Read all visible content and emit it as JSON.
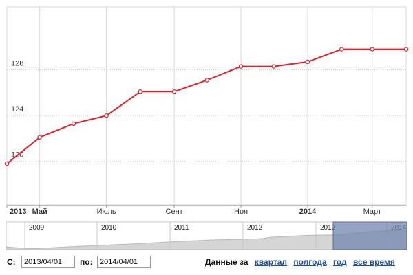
{
  "chart_data": {
    "type": "line",
    "title": "",
    "xlabel": "",
    "ylabel": "",
    "ylim": [
      116.2,
      133.5
    ],
    "y_ticks": [
      120,
      124,
      128
    ],
    "x_tick_labels": [
      {
        "label": "2013",
        "bold": true,
        "date": "2013-04-01"
      },
      {
        "label": "Май",
        "bold": true,
        "date": "2013-05-01"
      },
      {
        "label": "Июль",
        "bold": false,
        "date": "2013-07-01"
      },
      {
        "label": "Сент",
        "bold": false,
        "date": "2013-09-01"
      },
      {
        "label": "Ноя",
        "bold": false,
        "date": "2013-11-01"
      },
      {
        "label": "2014",
        "bold": true,
        "date": "2014-01-01"
      },
      {
        "label": "Март",
        "bold": false,
        "date": "2014-03-01"
      }
    ],
    "series": [
      {
        "color": "#e0202a",
        "points": [
          {
            "x": "2013-04-01",
            "y": 119.8
          },
          {
            "x": "2013-05-01",
            "y": 122.1
          },
          {
            "x": "2013-06-01",
            "y": 123.3
          },
          {
            "x": "2013-07-01",
            "y": 124.0
          },
          {
            "x": "2013-08-01",
            "y": 126.1
          },
          {
            "x": "2013-09-01",
            "y": 126.1
          },
          {
            "x": "2013-10-01",
            "y": 127.1
          },
          {
            "x": "2013-11-01",
            "y": 128.3
          },
          {
            "x": "2013-12-01",
            "y": 128.3
          },
          {
            "x": "2014-01-01",
            "y": 128.7
          },
          {
            "x": "2014-02-01",
            "y": 129.8
          },
          {
            "x": "2014-03-01",
            "y": 129.8
          },
          {
            "x": "2014-04-01",
            "y": 129.8
          }
        ]
      }
    ],
    "grid": true
  },
  "navigator": {
    "year_labels": [
      "2009",
      "2010",
      "2011",
      "2012",
      "2013",
      "2014"
    ],
    "selected_color": "#7385b0",
    "area_color": "#d5d5d5"
  },
  "controls": {
    "from_label": "С:",
    "from_value": "2013/04/01",
    "to_label": "по:",
    "to_value": "2014/04/01",
    "range_label": "Данные за",
    "range_links": [
      "квартал",
      "полгода",
      "год",
      "все время"
    ]
  }
}
